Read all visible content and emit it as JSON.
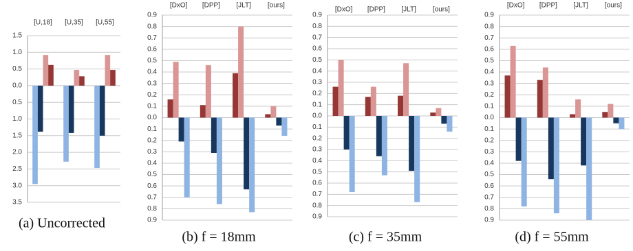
{
  "chart_data": [
    {
      "type": "bar",
      "caption": "(a) Uncorrected",
      "categories": [
        "[U,18]",
        "[U,35]",
        "[U,55]"
      ],
      "series": [
        {
          "color": "#8db4e2",
          "values": [
            -2.95,
            -2.28,
            -2.47
          ]
        },
        {
          "color": "#17375e",
          "values": [
            -1.38,
            -1.42,
            -1.5
          ]
        },
        {
          "color": "#d99694",
          "values": [
            0.92,
            0.47,
            0.92
          ]
        },
        {
          "color": "#953735",
          "values": [
            0.62,
            0.28,
            0.47
          ]
        }
      ],
      "ylim": [
        -3.5,
        1.5
      ],
      "yticks": [
        1.5,
        {
          "value": 1,
          "label": "1.0"
        },
        0.5,
        {
          "value": 0,
          "label": "0.0"
        },
        {
          "value": -0.5,
          "label": "0.5"
        },
        {
          "value": -1,
          "label": "1.0"
        },
        {
          "value": -1.5,
          "label": "1.5"
        },
        {
          "value": -2,
          "label": "2.0"
        },
        {
          "value": -2.5,
          "label": "2.5"
        },
        {
          "value": -3,
          "label": "3.0"
        },
        {
          "value": -3.5,
          "label": "3.5"
        }
      ],
      "grid": true
    },
    {
      "type": "bar",
      "caption": "(b) f = 18mm",
      "categories": [
        "[DxO]",
        "[DPP]",
        "[JLT]",
        "[ours]"
      ],
      "series": [
        {
          "color": "#953735",
          "values": [
            0.16,
            0.11,
            0.39,
            0.03
          ]
        },
        {
          "color": "#d99694",
          "values": [
            0.49,
            0.46,
            0.8,
            0.1
          ]
        },
        {
          "color": "#17375e",
          "values": [
            -0.21,
            -0.31,
            -0.63,
            -0.07
          ]
        },
        {
          "color": "#8db4e2",
          "values": [
            -0.7,
            -0.76,
            -0.83,
            -0.16
          ]
        }
      ],
      "ylim": [
        -0.9,
        0.9
      ],
      "yticks": [
        0.9,
        0.8,
        0.7,
        0.6,
        0.5,
        0.4,
        0.3,
        0.2,
        0.1,
        {
          "value": 0,
          "label": "0.0"
        },
        {
          "value": -0.1,
          "label": "0.1"
        },
        {
          "value": -0.2,
          "label": "0.2"
        },
        {
          "value": -0.3,
          "label": "0.3"
        },
        {
          "value": -0.4,
          "label": "0.4"
        },
        {
          "value": -0.5,
          "label": "0.5"
        },
        {
          "value": -0.6,
          "label": "0.6"
        },
        {
          "value": -0.7,
          "label": "0.7"
        },
        {
          "value": -0.8,
          "label": "0.8"
        },
        {
          "value": -0.9,
          "label": "0.9"
        }
      ],
      "grid": true
    },
    {
      "type": "bar",
      "caption": "(c) f = 35mm",
      "categories": [
        "[DxO]",
        "[DPP]",
        "[JLT]",
        "[ours]"
      ],
      "series": [
        {
          "color": "#953735",
          "values": [
            0.26,
            0.17,
            0.18,
            0.03
          ]
        },
        {
          "color": "#d99694",
          "values": [
            0.5,
            0.26,
            0.47,
            0.07
          ]
        },
        {
          "color": "#17375e",
          "values": [
            -0.3,
            -0.36,
            -0.49,
            -0.07
          ]
        },
        {
          "color": "#8db4e2",
          "values": [
            -0.68,
            -0.53,
            -0.77,
            -0.14
          ]
        }
      ],
      "ylim": [
        -0.9,
        0.9
      ],
      "yticks": [
        0.9,
        0.8,
        0.7,
        0.6,
        0.5,
        0.4,
        0.3,
        0.2,
        0.1,
        {
          "value": 0,
          "label": "0.0"
        },
        {
          "value": -0.1,
          "label": "0.1"
        },
        {
          "value": -0.2,
          "label": "0.2"
        },
        {
          "value": -0.3,
          "label": "0.3"
        },
        {
          "value": -0.4,
          "label": "0.4"
        },
        {
          "value": -0.5,
          "label": "0.5"
        },
        {
          "value": -0.6,
          "label": "0.6"
        },
        {
          "value": -0.7,
          "label": "0.7"
        },
        {
          "value": -0.8,
          "label": "0.8"
        },
        {
          "value": -0.9,
          "label": "0.9"
        }
      ],
      "grid": true
    },
    {
      "type": "bar",
      "caption": "(d) f = 55mm",
      "categories": [
        "[DxO]",
        "[DPP]",
        "[JLT]",
        "[ours]"
      ],
      "series": [
        {
          "color": "#953735",
          "values": [
            0.37,
            0.33,
            0.03,
            0.05
          ]
        },
        {
          "color": "#d99694",
          "values": [
            0.63,
            0.44,
            0.16,
            0.12
          ]
        },
        {
          "color": "#17375e",
          "values": [
            -0.38,
            -0.54,
            -0.42,
            -0.05
          ]
        },
        {
          "color": "#8db4e2",
          "values": [
            -0.78,
            -0.84,
            -0.9,
            -0.1
          ]
        }
      ],
      "ylim": [
        -0.9,
        0.9
      ],
      "yticks": [
        0.9,
        0.8,
        0.7,
        0.6,
        0.5,
        0.4,
        0.3,
        0.2,
        0.1,
        {
          "value": 0,
          "label": "0.0"
        },
        {
          "value": -0.1,
          "label": "0.1"
        },
        {
          "value": -0.2,
          "label": "0.2"
        },
        {
          "value": -0.3,
          "label": "0.3"
        },
        {
          "value": -0.4,
          "label": "0.4"
        },
        {
          "value": -0.5,
          "label": "0.5"
        },
        {
          "value": -0.6,
          "label": "0.6"
        },
        {
          "value": -0.7,
          "label": "0.7"
        },
        {
          "value": -0.8,
          "label": "0.8"
        },
        {
          "value": -0.9,
          "label": "0.9"
        }
      ],
      "grid": true
    }
  ]
}
